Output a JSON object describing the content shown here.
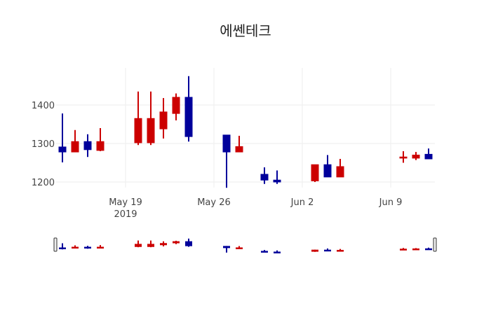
{
  "title": "에쎈테크",
  "colors": {
    "increasing": "#cc0000",
    "decreasing": "#00009b",
    "grid": "#eeeeee",
    "background": "#ffffff"
  },
  "chart_data": {
    "type": "candlestick",
    "title": "에쎈테크",
    "xlabel": "",
    "ylabel": "",
    "x_tick_labels": [
      "May 19\n2019",
      "May 26",
      "Jun 2",
      "Jun 9"
    ],
    "y_tick_labels": [
      "1200",
      "1300",
      "1400"
    ],
    "ylim": [
      1175,
      1490
    ],
    "grid": true,
    "rangeslider": true,
    "legend": "none",
    "candles": [
      {
        "date": "2019-05-14",
        "open": 1291,
        "high": 1378,
        "low": 1251,
        "close": 1278
      },
      {
        "date": "2019-05-15",
        "open": 1278,
        "high": 1335,
        "low": 1278,
        "close": 1305
      },
      {
        "date": "2019-05-16",
        "open": 1305,
        "high": 1324,
        "low": 1265,
        "close": 1284
      },
      {
        "date": "2019-05-17",
        "open": 1282,
        "high": 1340,
        "low": 1280,
        "close": 1305
      },
      {
        "date": "2019-05-20",
        "open": 1302,
        "high": 1435,
        "low": 1296,
        "close": 1365
      },
      {
        "date": "2019-05-21",
        "open": 1302,
        "high": 1435,
        "low": 1296,
        "close": 1365
      },
      {
        "date": "2019-05-22",
        "open": 1338,
        "high": 1418,
        "low": 1313,
        "close": 1382
      },
      {
        "date": "2019-05-23",
        "open": 1378,
        "high": 1430,
        "low": 1360,
        "close": 1420
      },
      {
        "date": "2019-05-24",
        "open": 1420,
        "high": 1475,
        "low": 1305,
        "close": 1318
      },
      {
        "date": "2019-05-27",
        "open": 1322,
        "high": 1322,
        "low": 1185,
        "close": 1278
      },
      {
        "date": "2019-05-28",
        "open": 1278,
        "high": 1320,
        "low": 1278,
        "close": 1292
      },
      {
        "date": "2019-05-30",
        "open": 1220,
        "high": 1238,
        "low": 1195,
        "close": 1205
      },
      {
        "date": "2019-05-31",
        "open": 1205,
        "high": 1230,
        "low": 1195,
        "close": 1200
      },
      {
        "date": "2019-06-03",
        "open": 1203,
        "high": 1245,
        "low": 1200,
        "close": 1245
      },
      {
        "date": "2019-06-04",
        "open": 1245,
        "high": 1270,
        "low": 1213,
        "close": 1213
      },
      {
        "date": "2019-06-05",
        "open": 1213,
        "high": 1260,
        "low": 1213,
        "close": 1240
      },
      {
        "date": "2019-06-10",
        "open": 1262,
        "high": 1280,
        "low": 1250,
        "close": 1265
      },
      {
        "date": "2019-06-11",
        "open": 1262,
        "high": 1278,
        "low": 1257,
        "close": 1270
      },
      {
        "date": "2019-06-12",
        "open": 1272,
        "high": 1287,
        "low": 1260,
        "close": 1260
      }
    ]
  }
}
